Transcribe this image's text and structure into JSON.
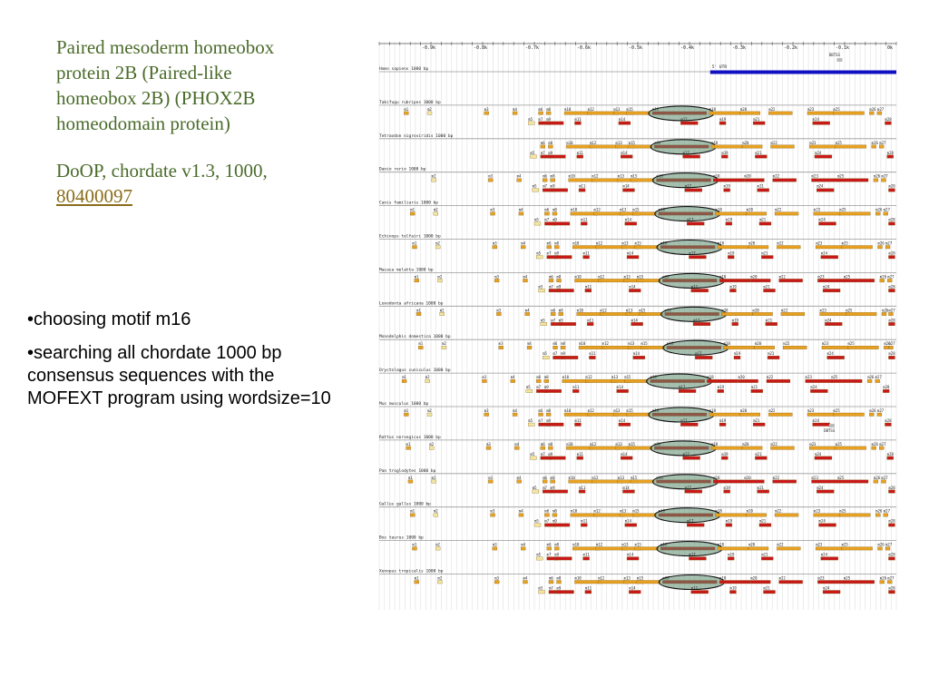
{
  "title": {
    "lines": [
      "Paired mesoderm homeobox",
      "protein 2B (Paired-like",
      "homeobox 2B) (PHOX2B",
      "homeodomain protein)"
    ],
    "doop_lines": [
      "DoOP, chordate v1.3, 1000,"
    ],
    "link": "80400097"
  },
  "bullets": [
    "•choosing motif m16",
    "•searching all chordate 1000 bp consensus sequences with the MOFEXT program using wordsize=10"
  ],
  "colors": {
    "orange": "#e8a020",
    "red": "#c81818",
    "blue": "#1010c0",
    "light": "#f4e6a0",
    "ellipse_fill": "#5c8c70",
    "grid": "#d8d8d8",
    "seqline": "#9a9a9a"
  },
  "axis": {
    "ticks": [
      "-0.9k",
      "-0.8k",
      "-0.7k",
      "-0.6k",
      "-0.5k",
      "-0.4k",
      "-0.3k",
      "-0.2k",
      "-0.1k",
      "0k"
    ]
  },
  "utr_label": "5' UTR",
  "gts_label": "DBTSS",
  "species": [
    "Homo sapiens 1000 bp",
    "Takifugu rubripes 1000 bp",
    "Tetraodon nigroviridis 1000 bp",
    "Danio rerio 1000 bp",
    "Canis familiaris 1000 bp",
    "Echinops telfairi 1000 bp",
    "Macaca mulatta 1000 bp",
    "Loxodonta africana 1000 bp",
    "Monodelphis domestica 1000 bp",
    "Oryctolagus cuniculus 1000 bp",
    "Mus musculus 1000 bp",
    "Rattus norvegicus 1000 bp",
    "Pan troglodytes 1000 bp",
    "Gallus gallus 1000 bp",
    "Bos taurus 1000 bp",
    "Xenopus tropicalis 1000 bp"
  ],
  "motifs_std": [
    [
      "m1",
      0.06,
      0
    ],
    [
      "m2",
      0.105,
      0
    ],
    [
      "m3",
      0.215,
      0
    ],
    [
      "m4",
      0.27,
      0
    ],
    [
      "m6",
      0.32,
      0
    ],
    [
      "m8",
      0.335,
      0
    ],
    [
      "m10",
      0.37,
      0
    ],
    [
      "m12",
      0.415,
      0
    ],
    [
      "m13",
      0.465,
      0
    ],
    [
      "m15",
      0.49,
      0
    ],
    [
      "m16",
      0.54,
      0
    ],
    [
      "m18",
      0.65,
      0
    ],
    [
      "m20",
      0.71,
      0
    ],
    [
      "m22",
      0.765,
      0
    ],
    [
      "m23",
      0.84,
      0
    ],
    [
      "m25",
      0.89,
      0
    ],
    [
      "m26",
      0.96,
      0
    ],
    [
      "m27",
      0.975,
      0
    ],
    [
      "m5",
      0.3,
      1
    ],
    [
      "m7",
      0.32,
      1
    ],
    [
      "m9",
      0.335,
      1
    ],
    [
      "m11",
      0.39,
      1
    ],
    [
      "m14",
      0.475,
      1
    ],
    [
      "m17",
      0.595,
      1
    ],
    [
      "m19",
      0.67,
      1
    ],
    [
      "m21",
      0.735,
      1
    ],
    [
      "m24",
      0.85,
      1
    ],
    [
      "m28",
      0.99,
      1
    ]
  ]
}
